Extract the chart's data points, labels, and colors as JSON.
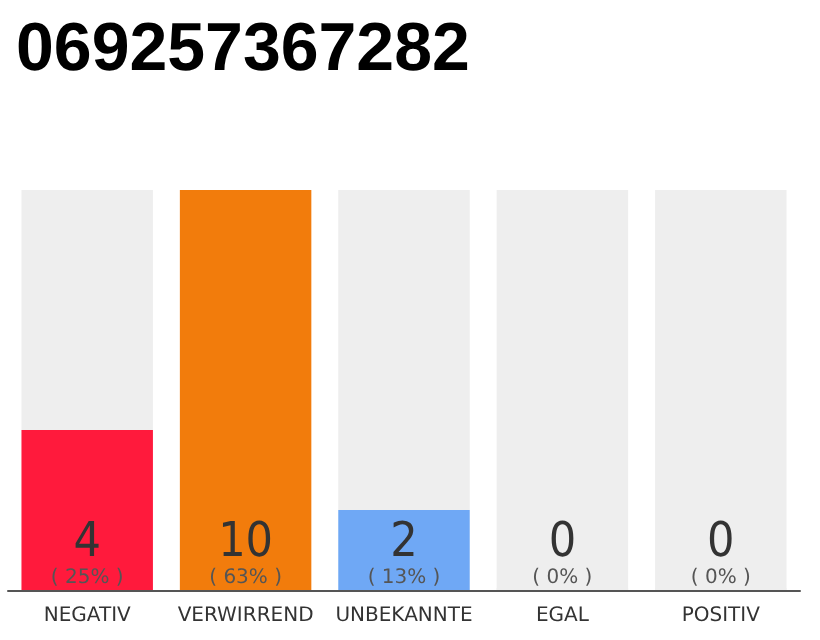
{
  "chart_data": {
    "type": "bar",
    "title": "069257367282",
    "stacked": true,
    "categories": [
      "NEGATIV",
      "VERWIRREND",
      "UNBEKANNTE",
      "EGAL",
      "POSITIV"
    ],
    "series": [
      {
        "colors": [
          "#ff1a3c",
          "#f27c0c",
          "#6fa8f5",
          "#eeeeee",
          "#eeeeee"
        ],
        "values": [
          4,
          10,
          2,
          0,
          0
        ],
        "value_labels": [
          "4\n( 25% )",
          "10\n( 63% )",
          "2\n( 13% )",
          "0\n( 0% )",
          "0\n( 0% )"
        ]
      },
      {
        "color": "#eeeeee",
        "values": [
          6,
          0,
          8,
          10,
          10
        ]
      }
    ]
  }
}
